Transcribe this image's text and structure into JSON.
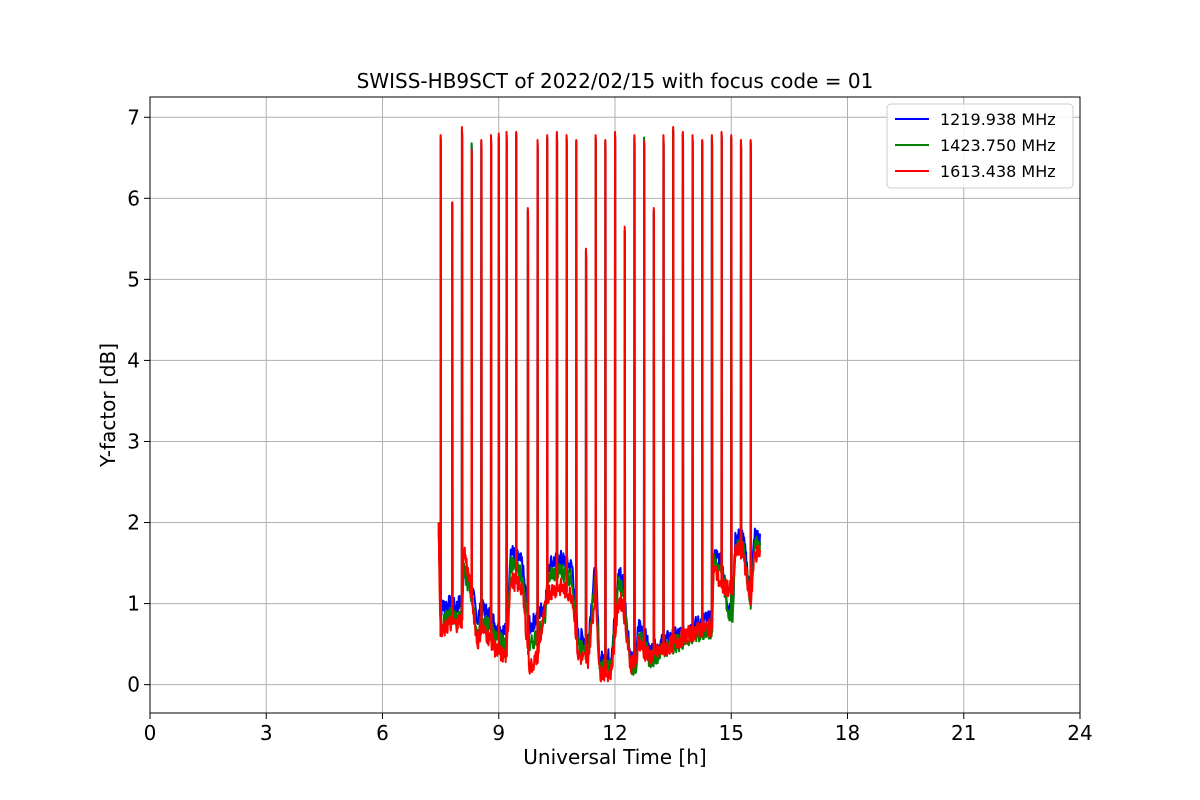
{
  "chart_data": {
    "type": "line",
    "title": "SWISS-HB9SCT of 2022/02/15 with focus code = 01",
    "xlabel": "Universal Time [h]",
    "ylabel": "Y-factor [dB]",
    "xlim": [
      0,
      24
    ],
    "ylim": [
      -0.35,
      7.25
    ],
    "xticks": [
      0,
      3,
      6,
      9,
      12,
      15,
      18,
      21,
      24
    ],
    "yticks": [
      0,
      1,
      2,
      3,
      4,
      5,
      6,
      7
    ],
    "grid": true,
    "legend_position": "top-right",
    "series": [
      {
        "name": "1219.938 MHz",
        "color": "#0000ff",
        "baseline": [
          [
            7.45,
            1.9
          ],
          [
            7.5,
            0.95
          ],
          [
            7.7,
            1.0
          ],
          [
            7.9,
            0.95
          ],
          [
            8.05,
            1.05
          ],
          [
            8.1,
            1.45
          ],
          [
            8.3,
            1.2
          ],
          [
            8.45,
            0.8
          ],
          [
            8.55,
            0.95
          ],
          [
            8.8,
            0.85
          ],
          [
            8.95,
            0.7
          ],
          [
            9.2,
            0.65
          ],
          [
            9.3,
            1.65
          ],
          [
            9.6,
            1.5
          ],
          [
            9.8,
            0.7
          ],
          [
            10.0,
            0.85
          ],
          [
            10.2,
            1.0
          ],
          [
            10.3,
            1.5
          ],
          [
            10.6,
            1.55
          ],
          [
            10.9,
            1.45
          ],
          [
            11.05,
            0.6
          ],
          [
            11.3,
            0.55
          ],
          [
            11.5,
            1.5
          ],
          [
            11.6,
            0.3
          ],
          [
            11.9,
            0.35
          ],
          [
            12.1,
            1.4
          ],
          [
            12.2,
            1.3
          ],
          [
            12.4,
            0.35
          ],
          [
            12.55,
            0.3
          ],
          [
            12.6,
            0.75
          ],
          [
            12.75,
            0.65
          ],
          [
            12.9,
            0.4
          ],
          [
            13.3,
            0.55
          ],
          [
            13.8,
            0.65
          ],
          [
            14.3,
            0.8
          ],
          [
            14.5,
            0.8
          ],
          [
            14.55,
            1.6
          ],
          [
            14.75,
            1.55
          ],
          [
            14.9,
            1.0
          ],
          [
            15.05,
            0.95
          ],
          [
            15.1,
            1.8
          ],
          [
            15.3,
            1.85
          ],
          [
            15.5,
            1.1
          ],
          [
            15.6,
            1.85
          ],
          [
            15.75,
            1.8
          ]
        ],
        "spikes": [
          [
            7.5,
            6.75
          ],
          [
            7.8,
            5.95
          ],
          [
            8.05,
            6.85
          ],
          [
            8.3,
            6.65
          ],
          [
            8.55,
            6.7
          ],
          [
            8.8,
            6.75
          ],
          [
            9.0,
            6.75
          ],
          [
            9.2,
            6.8
          ],
          [
            9.45,
            6.8
          ],
          [
            9.75,
            5.85
          ],
          [
            10.0,
            6.7
          ],
          [
            10.25,
            6.75
          ],
          [
            10.5,
            6.8
          ],
          [
            10.75,
            6.75
          ],
          [
            11.0,
            6.7
          ],
          [
            11.25,
            5.35
          ],
          [
            11.5,
            6.75
          ],
          [
            11.75,
            6.7
          ],
          [
            12.0,
            6.8
          ],
          [
            12.25,
            5.6
          ],
          [
            12.5,
            6.75
          ],
          [
            12.75,
            6.7
          ],
          [
            13.0,
            5.85
          ],
          [
            13.25,
            6.75
          ],
          [
            13.5,
            6.85
          ],
          [
            13.75,
            6.8
          ],
          [
            14.0,
            6.75
          ],
          [
            14.25,
            6.7
          ],
          [
            14.5,
            6.75
          ],
          [
            14.75,
            6.8
          ],
          [
            15.0,
            6.75
          ],
          [
            15.25,
            6.7
          ],
          [
            15.5,
            6.7
          ]
        ]
      },
      {
        "name": "1423.750 MHz",
        "color": "#008000",
        "baseline": [
          [
            7.45,
            1.9
          ],
          [
            7.5,
            0.7
          ],
          [
            7.7,
            0.85
          ],
          [
            7.9,
            0.85
          ],
          [
            8.05,
            0.9
          ],
          [
            8.1,
            1.4
          ],
          [
            8.3,
            1.1
          ],
          [
            8.45,
            0.6
          ],
          [
            8.55,
            0.8
          ],
          [
            8.8,
            0.7
          ],
          [
            8.95,
            0.55
          ],
          [
            9.2,
            0.5
          ],
          [
            9.3,
            1.5
          ],
          [
            9.6,
            1.35
          ],
          [
            9.8,
            0.5
          ],
          [
            10.0,
            0.6
          ],
          [
            10.2,
            0.85
          ],
          [
            10.3,
            1.35
          ],
          [
            10.6,
            1.4
          ],
          [
            10.9,
            1.3
          ],
          [
            11.05,
            0.45
          ],
          [
            11.3,
            0.4
          ],
          [
            11.5,
            1.4
          ],
          [
            11.6,
            0.2
          ],
          [
            11.9,
            0.25
          ],
          [
            12.1,
            1.25
          ],
          [
            12.2,
            1.2
          ],
          [
            12.4,
            0.25
          ],
          [
            12.55,
            0.2
          ],
          [
            12.6,
            0.6
          ],
          [
            12.75,
            0.5
          ],
          [
            12.9,
            0.3
          ],
          [
            13.3,
            0.45
          ],
          [
            13.8,
            0.55
          ],
          [
            14.3,
            0.65
          ],
          [
            14.5,
            0.65
          ],
          [
            14.55,
            1.5
          ],
          [
            14.75,
            1.45
          ],
          [
            14.9,
            0.9
          ],
          [
            15.05,
            0.85
          ],
          [
            15.1,
            1.7
          ],
          [
            15.3,
            1.75
          ],
          [
            15.5,
            1.0
          ],
          [
            15.6,
            1.75
          ],
          [
            15.75,
            1.7
          ]
        ],
        "spikes": [
          [
            7.5,
            6.75
          ],
          [
            7.8,
            5.95
          ],
          [
            8.05,
            6.85
          ],
          [
            8.3,
            6.68
          ],
          [
            8.55,
            6.7
          ],
          [
            8.8,
            6.75
          ],
          [
            9.0,
            6.75
          ],
          [
            9.2,
            6.8
          ],
          [
            9.45,
            6.8
          ],
          [
            9.75,
            5.85
          ],
          [
            10.0,
            6.7
          ],
          [
            10.25,
            6.75
          ],
          [
            10.5,
            6.8
          ],
          [
            10.75,
            6.75
          ],
          [
            11.0,
            6.7
          ],
          [
            11.25,
            5.35
          ],
          [
            11.5,
            6.75
          ],
          [
            11.75,
            6.7
          ],
          [
            12.0,
            6.8
          ],
          [
            12.25,
            5.6
          ],
          [
            12.5,
            6.75
          ],
          [
            12.75,
            6.75
          ],
          [
            13.0,
            5.85
          ],
          [
            13.25,
            6.75
          ],
          [
            13.5,
            6.85
          ],
          [
            13.75,
            6.8
          ],
          [
            14.0,
            6.75
          ],
          [
            14.25,
            6.7
          ],
          [
            14.5,
            6.75
          ],
          [
            14.75,
            6.8
          ],
          [
            15.0,
            6.75
          ],
          [
            15.25,
            6.7
          ],
          [
            15.5,
            6.7
          ]
        ]
      },
      {
        "name": "1613.438 MHz",
        "color": "#ff0000",
        "baseline": [
          [
            7.45,
            1.9
          ],
          [
            7.5,
            0.6
          ],
          [
            7.7,
            0.75
          ],
          [
            7.9,
            0.75
          ],
          [
            8.05,
            0.8
          ],
          [
            8.1,
            1.7
          ],
          [
            8.3,
            1.1
          ],
          [
            8.45,
            0.5
          ],
          [
            8.55,
            0.7
          ],
          [
            8.8,
            0.55
          ],
          [
            8.95,
            0.4
          ],
          [
            9.2,
            0.35
          ],
          [
            9.3,
            1.3
          ],
          [
            9.6,
            1.2
          ],
          [
            9.8,
            0.2
          ],
          [
            10.0,
            0.35
          ],
          [
            10.2,
            0.95
          ],
          [
            10.3,
            1.15
          ],
          [
            10.6,
            1.2
          ],
          [
            10.9,
            1.1
          ],
          [
            11.05,
            0.35
          ],
          [
            11.3,
            0.3
          ],
          [
            11.5,
            1.15
          ],
          [
            11.6,
            0.15
          ],
          [
            11.9,
            0.15
          ],
          [
            12.1,
            1.05
          ],
          [
            12.2,
            1.0
          ],
          [
            12.4,
            0.25
          ],
          [
            12.55,
            0.25
          ],
          [
            12.6,
            0.55
          ],
          [
            12.75,
            0.4
          ],
          [
            12.9,
            0.35
          ],
          [
            13.3,
            0.45
          ],
          [
            13.8,
            0.6
          ],
          [
            14.3,
            0.7
          ],
          [
            14.5,
            0.7
          ],
          [
            14.55,
            1.45
          ],
          [
            14.75,
            1.2
          ],
          [
            14.9,
            1.2
          ],
          [
            15.05,
            1.15
          ],
          [
            15.1,
            1.65
          ],
          [
            15.3,
            1.65
          ],
          [
            15.5,
            1.0
          ],
          [
            15.6,
            1.6
          ],
          [
            15.75,
            1.65
          ]
        ],
        "spikes": [
          [
            7.5,
            6.78
          ],
          [
            7.8,
            5.95
          ],
          [
            8.05,
            6.88
          ],
          [
            8.3,
            6.6
          ],
          [
            8.55,
            6.72
          ],
          [
            8.8,
            6.78
          ],
          [
            9.0,
            6.8
          ],
          [
            9.2,
            6.82
          ],
          [
            9.45,
            6.82
          ],
          [
            9.75,
            5.88
          ],
          [
            10.0,
            6.72
          ],
          [
            10.25,
            6.78
          ],
          [
            10.5,
            6.82
          ],
          [
            10.75,
            6.78
          ],
          [
            11.0,
            6.72
          ],
          [
            11.25,
            5.38
          ],
          [
            11.5,
            6.78
          ],
          [
            11.75,
            6.72
          ],
          [
            12.0,
            6.82
          ],
          [
            12.25,
            5.65
          ],
          [
            12.5,
            6.78
          ],
          [
            12.75,
            6.7
          ],
          [
            13.0,
            5.88
          ],
          [
            13.25,
            6.78
          ],
          [
            13.5,
            6.88
          ],
          [
            13.75,
            6.82
          ],
          [
            14.0,
            6.78
          ],
          [
            14.25,
            6.72
          ],
          [
            14.5,
            6.78
          ],
          [
            14.75,
            6.82
          ],
          [
            15.0,
            6.78
          ],
          [
            15.25,
            6.72
          ],
          [
            15.5,
            6.72
          ]
        ]
      }
    ]
  }
}
